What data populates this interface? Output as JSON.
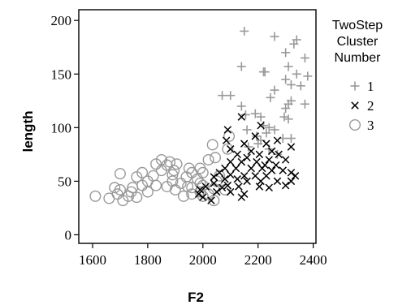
{
  "chart_data": {
    "type": "scatter",
    "title": "",
    "xlabel": "F2",
    "ylabel": "length",
    "xlim": [
      1550,
      2410
    ],
    "ylim": [
      -8,
      210
    ],
    "x_ticks": [
      1600,
      1800,
      2000,
      2200,
      2400
    ],
    "y_ticks": [
      0,
      50,
      100,
      150,
      200
    ],
    "grid": false,
    "legend": {
      "title_lines": [
        "TwoStep",
        "Cluster",
        "Number"
      ],
      "position": "right"
    },
    "series": [
      {
        "name": "1",
        "marker": "plus",
        "color": "#999999",
        "points": [
          [
            2150,
            190
          ],
          [
            2260,
            185
          ],
          [
            2340,
            182
          ],
          [
            2330,
            178
          ],
          [
            2300,
            170
          ],
          [
            2370,
            165
          ],
          [
            2140,
            157
          ],
          [
            2310,
            157
          ],
          [
            2220,
            152
          ],
          [
            2225,
            152
          ],
          [
            2340,
            150
          ],
          [
            2380,
            148
          ],
          [
            2300,
            145
          ],
          [
            2320,
            140
          ],
          [
            2355,
            139
          ],
          [
            2260,
            135
          ],
          [
            2245,
            128
          ],
          [
            2100,
            130
          ],
          [
            2070,
            130
          ],
          [
            2320,
            125
          ],
          [
            2310,
            122
          ],
          [
            2370,
            122
          ],
          [
            2140,
            120
          ],
          [
            2300,
            118
          ],
          [
            2190,
            113
          ],
          [
            2155,
            112
          ],
          [
            2210,
            110
          ],
          [
            2295,
            110
          ],
          [
            2310,
            108
          ],
          [
            2220,
            102
          ],
          [
            2240,
            100
          ],
          [
            2160,
            98
          ],
          [
            2260,
            98
          ],
          [
            2230,
            95
          ],
          [
            2195,
            92
          ],
          [
            2290,
            90
          ],
          [
            2210,
            88
          ],
          [
            2320,
            90
          ],
          [
            2200,
            85
          ],
          [
            2240,
            80
          ],
          [
            2165,
            82
          ],
          [
            2270,
            75
          ]
        ]
      },
      {
        "name": "2",
        "marker": "x",
        "color": "#000000",
        "points": [
          [
            2140,
            110
          ],
          [
            2090,
            98
          ],
          [
            2210,
            102
          ],
          [
            2190,
            92
          ],
          [
            2085,
            88
          ],
          [
            2150,
            85
          ],
          [
            2270,
            88
          ],
          [
            2230,
            85
          ],
          [
            2320,
            82
          ],
          [
            2100,
            80
          ],
          [
            2175,
            78
          ],
          [
            2250,
            78
          ],
          [
            2125,
            75
          ],
          [
            2205,
            75
          ],
          [
            2275,
            75
          ],
          [
            2160,
            72
          ],
          [
            2240,
            70
          ],
          [
            2300,
            70
          ],
          [
            2100,
            68
          ],
          [
            2140,
            68
          ],
          [
            2195,
            68
          ],
          [
            2225,
            65
          ],
          [
            2265,
            65
          ],
          [
            2080,
            62
          ],
          [
            2120,
            62
          ],
          [
            2175,
            62
          ],
          [
            2215,
            62
          ],
          [
            2250,
            60
          ],
          [
            2290,
            60
          ],
          [
            2320,
            58
          ],
          [
            2060,
            58
          ],
          [
            2100,
            56
          ],
          [
            2150,
            55
          ],
          [
            2190,
            55
          ],
          [
            2230,
            55
          ],
          [
            2335,
            55
          ],
          [
            2040,
            54
          ],
          [
            2080,
            52
          ],
          [
            2125,
            52
          ],
          [
            2160,
            50
          ],
          [
            2210,
            50
          ],
          [
            2270,
            50
          ],
          [
            2320,
            50
          ],
          [
            2040,
            48
          ],
          [
            2090,
            46
          ],
          [
            2130,
            45
          ],
          [
            2205,
            45
          ],
          [
            2300,
            46
          ],
          [
            2010,
            45
          ],
          [
            2070,
            44
          ],
          [
            2240,
            44
          ],
          [
            1990,
            42
          ],
          [
            2050,
            40
          ],
          [
            2100,
            40
          ],
          [
            2150,
            38
          ],
          [
            1985,
            38
          ],
          [
            2000,
            35
          ],
          [
            2030,
            32
          ],
          [
            2140,
            35
          ]
        ]
      },
      {
        "name": "3",
        "marker": "circle",
        "color": "#999999",
        "points": [
          [
            2095,
            92
          ],
          [
            2035,
            84
          ],
          [
            2090,
            80
          ],
          [
            2045,
            72
          ],
          [
            1850,
            70
          ],
          [
            1880,
            68
          ],
          [
            2020,
            70
          ],
          [
            1905,
            66
          ],
          [
            1830,
            66
          ],
          [
            1870,
            65
          ],
          [
            1950,
            62
          ],
          [
            1990,
            62
          ],
          [
            1895,
            60
          ],
          [
            1850,
            60
          ],
          [
            1780,
            58
          ],
          [
            1960,
            58
          ],
          [
            2000,
            58
          ],
          [
            1700,
            57
          ],
          [
            1890,
            56
          ],
          [
            1820,
            55
          ],
          [
            2060,
            55
          ],
          [
            1760,
            54
          ],
          [
            1940,
            54
          ],
          [
            1980,
            52
          ],
          [
            1890,
            50
          ],
          [
            1800,
            50
          ],
          [
            2050,
            50
          ],
          [
            1920,
            48
          ],
          [
            1990,
            48
          ],
          [
            2000,
            46
          ],
          [
            1780,
            46
          ],
          [
            1830,
            46
          ],
          [
            1870,
            45
          ],
          [
            1945,
            45
          ],
          [
            1745,
            44
          ],
          [
            1960,
            44
          ],
          [
            1680,
            44
          ],
          [
            2040,
            43
          ],
          [
            1700,
            42
          ],
          [
            1900,
            42
          ],
          [
            1990,
            40
          ],
          [
            2080,
            42
          ],
          [
            1740,
            40
          ],
          [
            1800,
            40
          ],
          [
            2020,
            38
          ],
          [
            1960,
            38
          ],
          [
            1610,
            36
          ],
          [
            1730,
            36
          ],
          [
            1760,
            35
          ],
          [
            1930,
            36
          ],
          [
            2000,
            36
          ],
          [
            1660,
            34
          ],
          [
            1710,
            32
          ],
          [
            2040,
            32
          ],
          [
            1690,
            38
          ]
        ]
      }
    ]
  }
}
